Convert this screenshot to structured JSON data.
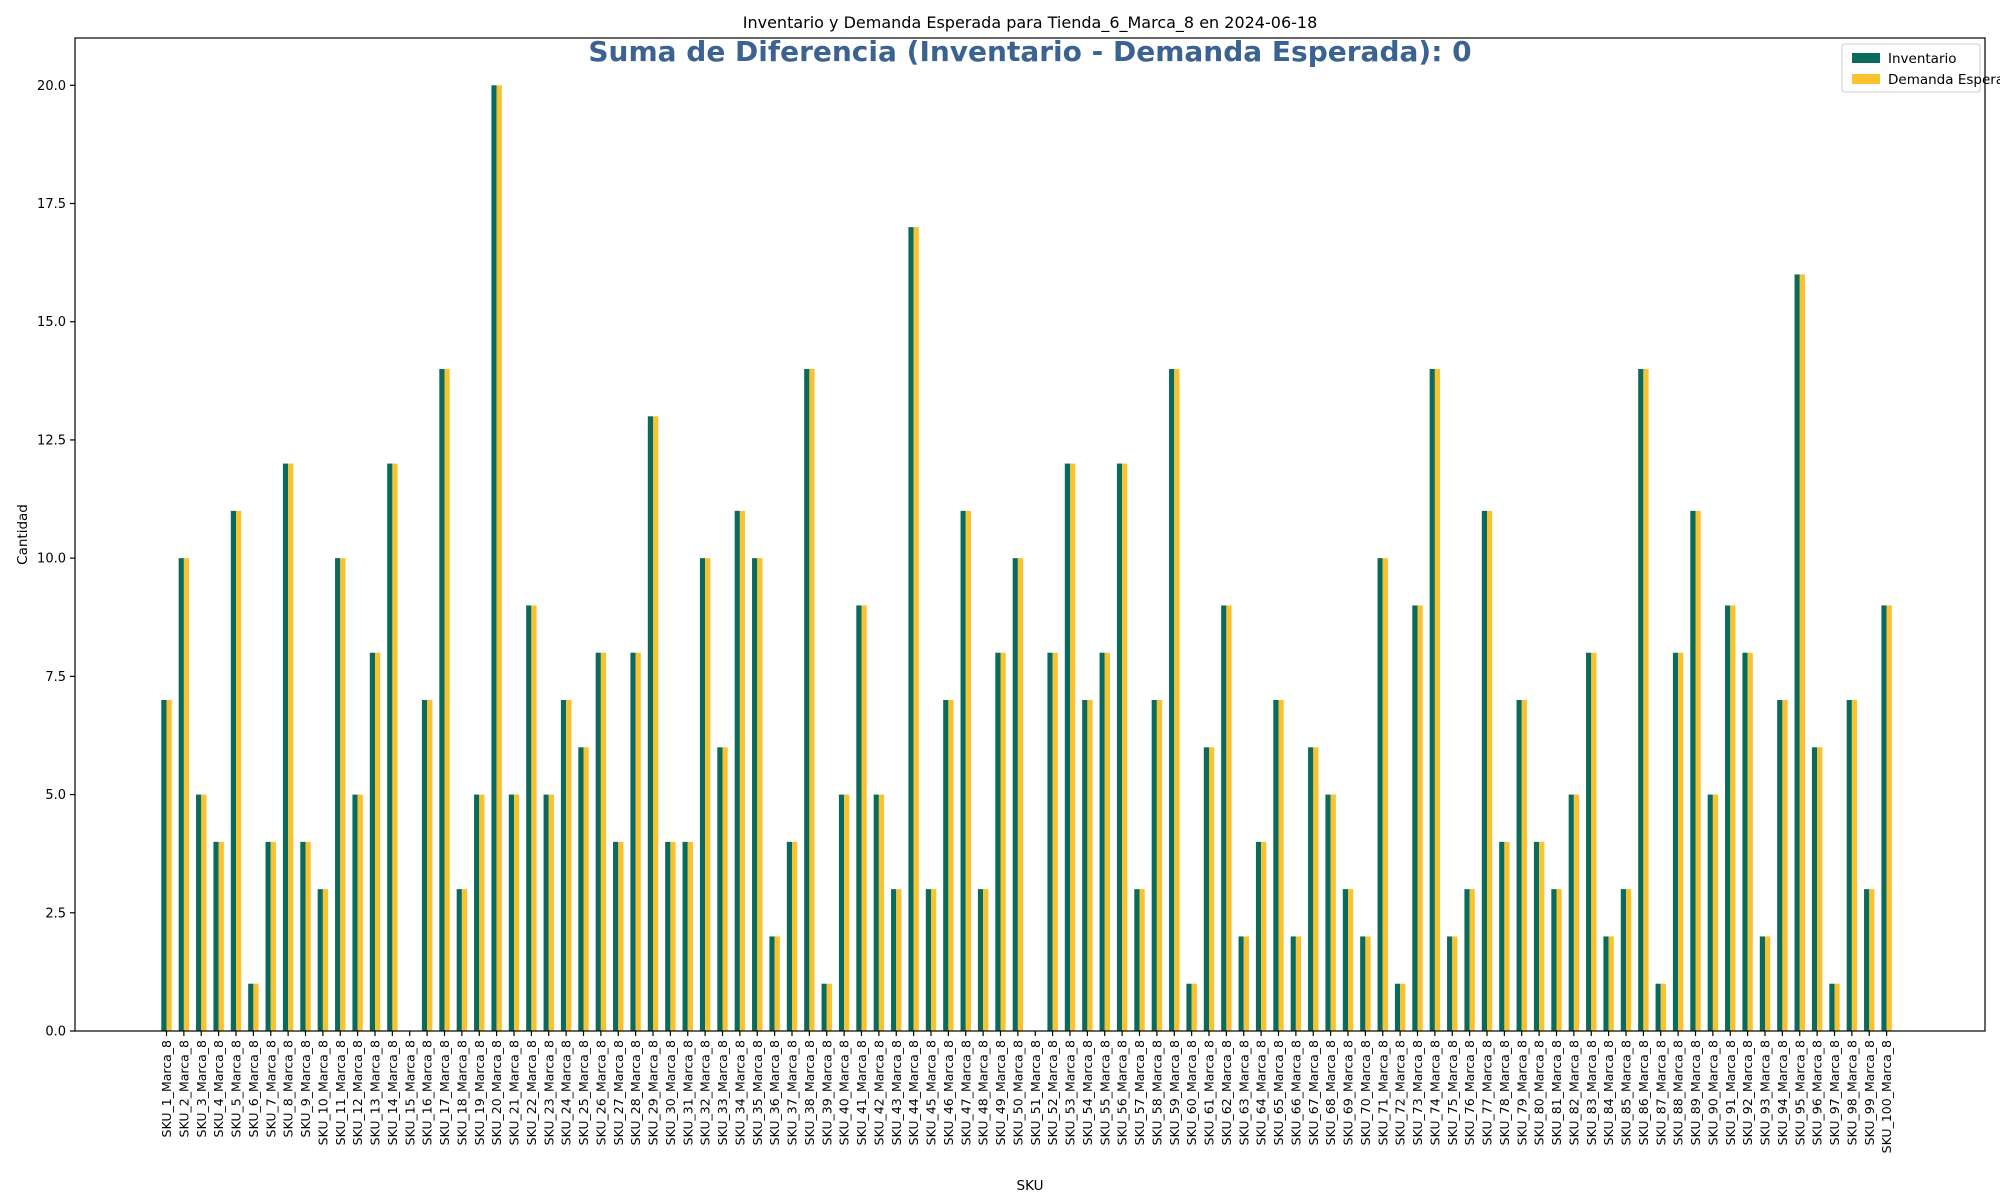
{
  "chart_data": {
    "type": "bar",
    "title": "Inventario y Demanda Esperada para Tienda_6_Marca_8 en 2024-06-18",
    "annotation": "Suma de Diferencia (Inventario - Demanda Esperada): 0",
    "xlabel": "SKU",
    "ylabel": "Cantidad",
    "ylim": [
      0,
      21
    ],
    "yticks": [
      "0.0",
      "2.5",
      "5.0",
      "7.5",
      "10.0",
      "12.5",
      "15.0",
      "17.5",
      "20.0"
    ],
    "grid": false,
    "legend_position": "top-right",
    "colors": {
      "Inventario": "#0a6b5c",
      "Demanda Esperada": "#f9c22e"
    },
    "categories": [
      "SKU_1_Marca_8",
      "SKU_2_Marca_8",
      "SKU_3_Marca_8",
      "SKU_4_Marca_8",
      "SKU_5_Marca_8",
      "SKU_6_Marca_8",
      "SKU_7_Marca_8",
      "SKU_8_Marca_8",
      "SKU_9_Marca_8",
      "SKU_10_Marca_8",
      "SKU_11_Marca_8",
      "SKU_12_Marca_8",
      "SKU_13_Marca_8",
      "SKU_14_Marca_8",
      "SKU_15_Marca_8",
      "SKU_16_Marca_8",
      "SKU_17_Marca_8",
      "SKU_18_Marca_8",
      "SKU_19_Marca_8",
      "SKU_20_Marca_8",
      "SKU_21_Marca_8",
      "SKU_22_Marca_8",
      "SKU_23_Marca_8",
      "SKU_24_Marca_8",
      "SKU_25_Marca_8",
      "SKU_26_Marca_8",
      "SKU_27_Marca_8",
      "SKU_28_Marca_8",
      "SKU_29_Marca_8",
      "SKU_30_Marca_8",
      "SKU_31_Marca_8",
      "SKU_32_Marca_8",
      "SKU_33_Marca_8",
      "SKU_34_Marca_8",
      "SKU_35_Marca_8",
      "SKU_36_Marca_8",
      "SKU_37_Marca_8",
      "SKU_38_Marca_8",
      "SKU_39_Marca_8",
      "SKU_40_Marca_8",
      "SKU_41_Marca_8",
      "SKU_42_Marca_8",
      "SKU_43_Marca_8",
      "SKU_44_Marca_8",
      "SKU_45_Marca_8",
      "SKU_46_Marca_8",
      "SKU_47_Marca_8",
      "SKU_48_Marca_8",
      "SKU_49_Marca_8",
      "SKU_50_Marca_8",
      "SKU_51_Marca_8",
      "SKU_52_Marca_8",
      "SKU_53_Marca_8",
      "SKU_54_Marca_8",
      "SKU_55_Marca_8",
      "SKU_56_Marca_8",
      "SKU_57_Marca_8",
      "SKU_58_Marca_8",
      "SKU_59_Marca_8",
      "SKU_60_Marca_8",
      "SKU_61_Marca_8",
      "SKU_62_Marca_8",
      "SKU_63_Marca_8",
      "SKU_64_Marca_8",
      "SKU_65_Marca_8",
      "SKU_66_Marca_8",
      "SKU_67_Marca_8",
      "SKU_68_Marca_8",
      "SKU_69_Marca_8",
      "SKU_70_Marca_8",
      "SKU_71_Marca_8",
      "SKU_72_Marca_8",
      "SKU_73_Marca_8",
      "SKU_74_Marca_8",
      "SKU_75_Marca_8",
      "SKU_76_Marca_8",
      "SKU_77_Marca_8",
      "SKU_78_Marca_8",
      "SKU_79_Marca_8",
      "SKU_80_Marca_8",
      "SKU_81_Marca_8",
      "SKU_82_Marca_8",
      "SKU_83_Marca_8",
      "SKU_84_Marca_8",
      "SKU_85_Marca_8",
      "SKU_86_Marca_8",
      "SKU_87_Marca_8",
      "SKU_88_Marca_8",
      "SKU_89_Marca_8",
      "SKU_90_Marca_8",
      "SKU_91_Marca_8",
      "SKU_92_Marca_8",
      "SKU_93_Marca_8",
      "SKU_94_Marca_8",
      "SKU_95_Marca_8",
      "SKU_96_Marca_8",
      "SKU_97_Marca_8",
      "SKU_98_Marca_8",
      "SKU_99_Marca_8",
      "SKU_100_Marca_8"
    ],
    "series": [
      {
        "name": "Inventario",
        "values": [
          7,
          10,
          5,
          4,
          11,
          1,
          4,
          12,
          4,
          3,
          10,
          5,
          8,
          12,
          0,
          7,
          14,
          3,
          5,
          20,
          5,
          9,
          5,
          7,
          6,
          8,
          4,
          8,
          13,
          4,
          4,
          10,
          6,
          11,
          10,
          2,
          4,
          14,
          1,
          5,
          9,
          5,
          3,
          17,
          3,
          7,
          11,
          3,
          8,
          10,
          0,
          8,
          12,
          7,
          8,
          12,
          3,
          7,
          14,
          1,
          6,
          9,
          2,
          4,
          7,
          2,
          6,
          5,
          3,
          2,
          10,
          1,
          9,
          14,
          2,
          3,
          11,
          4,
          7,
          4,
          3,
          5,
          8,
          2,
          3,
          14,
          1,
          8,
          11,
          5,
          9,
          8,
          2,
          7,
          16,
          6,
          1,
          7,
          3,
          9
        ]
      },
      {
        "name": "Demanda Esperada",
        "values": [
          7,
          10,
          5,
          4,
          11,
          1,
          4,
          12,
          4,
          3,
          10,
          5,
          8,
          12,
          0,
          7,
          14,
          3,
          5,
          20,
          5,
          9,
          5,
          7,
          6,
          8,
          4,
          8,
          13,
          4,
          4,
          10,
          6,
          11,
          10,
          2,
          4,
          14,
          1,
          5,
          9,
          5,
          3,
          17,
          3,
          7,
          11,
          3,
          8,
          10,
          0,
          8,
          12,
          7,
          8,
          12,
          3,
          7,
          14,
          1,
          6,
          9,
          2,
          4,
          7,
          2,
          6,
          5,
          3,
          2,
          10,
          1,
          9,
          14,
          2,
          3,
          11,
          4,
          7,
          4,
          3,
          5,
          8,
          2,
          3,
          14,
          1,
          8,
          11,
          5,
          9,
          8,
          2,
          7,
          16,
          6,
          1,
          7,
          3,
          9
        ]
      }
    ]
  }
}
